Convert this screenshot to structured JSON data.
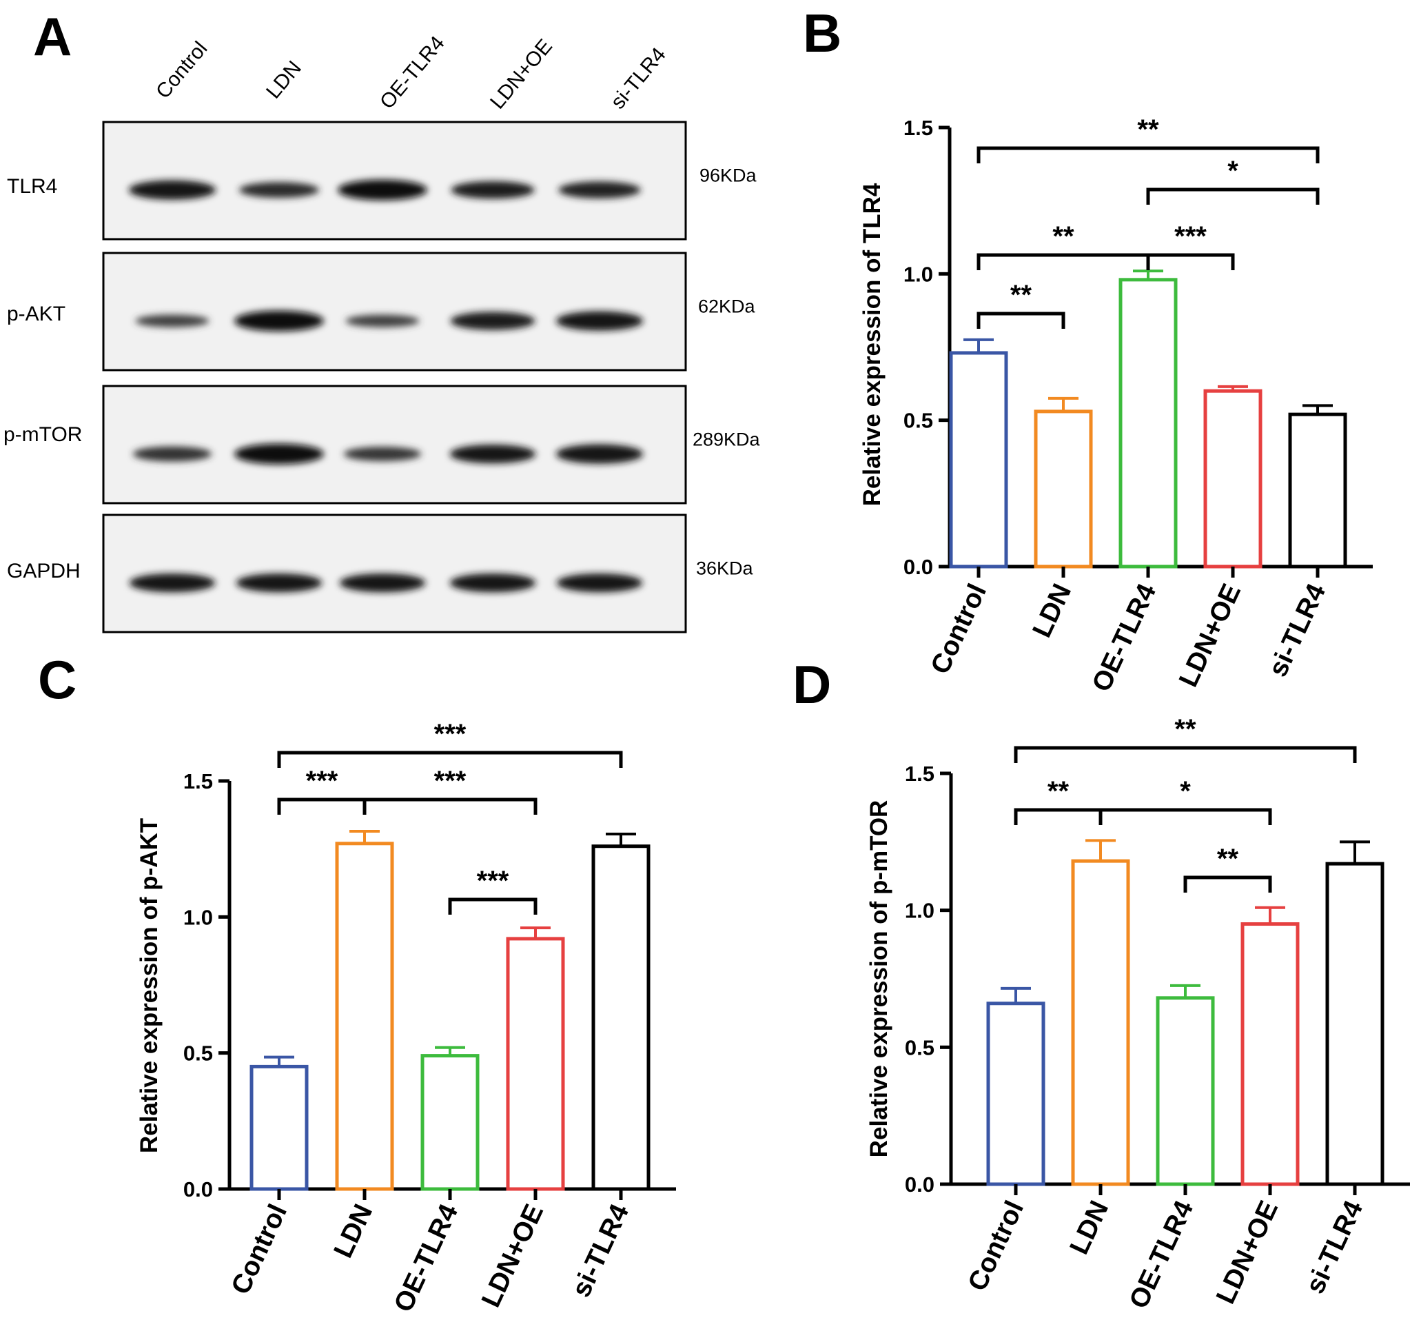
{
  "panels": {
    "a": "A",
    "b": "B",
    "c": "C",
    "d": "D"
  },
  "blot": {
    "lanes": [
      "Control",
      "LDN",
      "OE-TLR4",
      "LDN+OE",
      "si-TLR4"
    ],
    "rows": [
      {
        "protein": "TLR4",
        "size": "96KDa",
        "band_intensity": [
          0.9,
          0.6,
          1.0,
          0.75,
          0.7
        ]
      },
      {
        "protein": "p-AKT",
        "size": "62KDa",
        "band_intensity": [
          0.35,
          1.0,
          0.35,
          0.8,
          0.9
        ]
      },
      {
        "protein": "p-mTOR",
        "size": "289KDa",
        "band_intensity": [
          0.55,
          1.0,
          0.5,
          0.85,
          0.9
        ]
      },
      {
        "protein": "GAPDH",
        "size": "36KDa",
        "band_intensity": [
          0.85,
          0.85,
          0.85,
          0.85,
          0.85
        ]
      }
    ]
  },
  "chart_data": [
    {
      "type": "bar",
      "panel": "B",
      "categories": [
        "Control",
        "LDN",
        "OE-TLR4",
        "LDN+OE",
        "si-TLR4"
      ],
      "values": [
        0.73,
        0.53,
        0.98,
        0.6,
        0.52
      ],
      "errors": [
        0.045,
        0.045,
        0.03,
        0.015,
        0.03
      ],
      "colors": [
        "#3a56a5",
        "#f28a21",
        "#3dbb3d",
        "#e64040",
        "#000000"
      ],
      "ylabel": "Relative expression of TLR4",
      "ylim": [
        0,
        1.5
      ],
      "yticks": [
        "0.0",
        "0.5",
        "1.0",
        "1.5"
      ],
      "significance": [
        {
          "from": 0,
          "to": 4,
          "label": "**"
        },
        {
          "from": 2,
          "to": 4,
          "label": "*"
        },
        {
          "from": 0,
          "to": 2,
          "label": "**"
        },
        {
          "from": 2,
          "to": 3,
          "label": "***"
        },
        {
          "from": 0,
          "to": 1,
          "label": "**"
        }
      ]
    },
    {
      "type": "bar",
      "panel": "C",
      "categories": [
        "Control",
        "LDN",
        "OE-TLR4",
        "LDN+OE",
        "si-TLR4"
      ],
      "values": [
        0.45,
        1.27,
        0.49,
        0.92,
        1.26
      ],
      "errors": [
        0.035,
        0.045,
        0.03,
        0.04,
        0.045
      ],
      "colors": [
        "#3a56a5",
        "#f28a21",
        "#3dbb3d",
        "#e64040",
        "#000000"
      ],
      "ylabel": "Relative expression of p-AKT",
      "ylim": [
        0,
        1.5
      ],
      "yticks": [
        "0.0",
        "0.5",
        "1.0",
        "1.5"
      ],
      "significance": [
        {
          "from": 0,
          "to": 4,
          "label": "***"
        },
        {
          "from": 0,
          "to": 1,
          "label": "***"
        },
        {
          "from": 1,
          "to": 3,
          "label": "***"
        },
        {
          "from": 2,
          "to": 3,
          "label": "***"
        }
      ]
    },
    {
      "type": "bar",
      "panel": "D",
      "categories": [
        "Control",
        "LDN",
        "OE-TLR4",
        "LDN+OE",
        "si-TLR4"
      ],
      "values": [
        0.66,
        1.18,
        0.68,
        0.95,
        1.17
      ],
      "errors": [
        0.055,
        0.075,
        0.045,
        0.06,
        0.08
      ],
      "colors": [
        "#3a56a5",
        "#f28a21",
        "#3dbb3d",
        "#e64040",
        "#000000"
      ],
      "ylabel": "Relative expression of p-mTOR",
      "ylim": [
        0,
        1.5
      ],
      "yticks": [
        "0.0",
        "0.5",
        "1.0",
        "1.5"
      ],
      "significance": [
        {
          "from": 0,
          "to": 4,
          "label": "**"
        },
        {
          "from": 0,
          "to": 1,
          "label": "**"
        },
        {
          "from": 1,
          "to": 3,
          "label": "*"
        },
        {
          "from": 2,
          "to": 3,
          "label": "**"
        }
      ]
    }
  ]
}
